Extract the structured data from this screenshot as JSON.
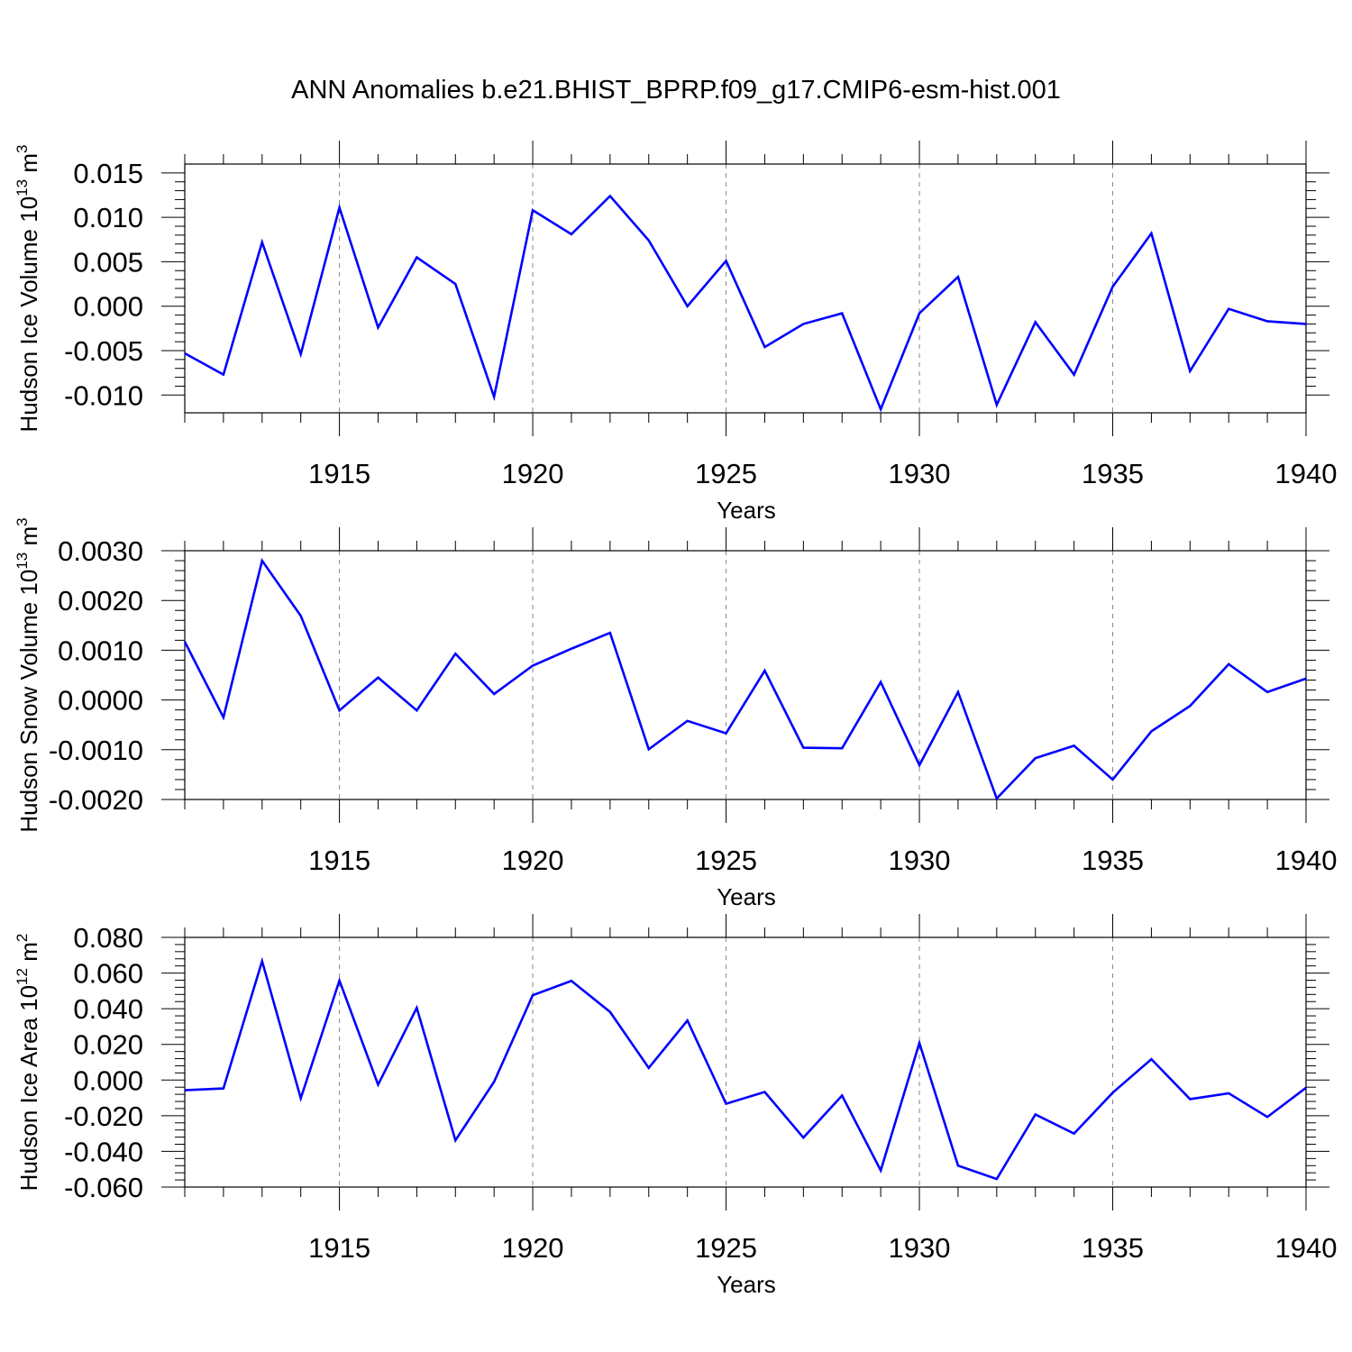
{
  "title": "ANN Anomalies b.e21.BHIST_BPRP.f09_g17.CMIP6-esm-hist.001",
  "colors": {
    "line": "#0000ff",
    "axis": "#000000",
    "grid": "#888888"
  },
  "chart_data": [
    {
      "type": "line",
      "ylabel": "Hudson Ice Volume 10",
      "ylabel_exp": "13",
      "ylabel_unit": "m",
      "ylabel_unit_exp": "3",
      "xlabel": "Years",
      "xlim": [
        1911,
        1940
      ],
      "ylim": [
        -0.012,
        0.016
      ],
      "yticks": [
        0.015,
        0.01,
        0.005,
        0.0,
        -0.005,
        -0.01
      ],
      "ytick_labels": [
        "0.015",
        "0.010",
        "0.005",
        "0.000",
        "-0.005",
        "-0.010"
      ],
      "xticks": [
        1915,
        1920,
        1925,
        1930,
        1935,
        1940
      ],
      "xtick_labels": [
        "1915",
        "1920",
        "1925",
        "1930",
        "1935",
        "1940"
      ],
      "grid": "vertical dashed at major x ticks",
      "x": [
        1911,
        1912,
        1913,
        1914,
        1915,
        1916,
        1917,
        1918,
        1919,
        1920,
        1921,
        1922,
        1923,
        1924,
        1925,
        1926,
        1927,
        1928,
        1929,
        1930,
        1931,
        1932,
        1933,
        1934,
        1935,
        1936,
        1937,
        1938,
        1939,
        1940
      ],
      "values": [
        -0.0053,
        -0.0077,
        0.0072,
        -0.0054,
        0.0111,
        -0.0024,
        0.0055,
        0.0025,
        -0.0102,
        0.0108,
        0.0081,
        0.0124,
        0.0074,
        0.0,
        0.0051,
        -0.0046,
        -0.002,
        -0.0008,
        -0.0116,
        -0.0008,
        0.0033,
        -0.0111,
        -0.0018,
        -0.0077,
        0.0022,
        0.0082,
        -0.0073,
        -0.0003,
        -0.0017,
        -0.002
      ]
    },
    {
      "type": "line",
      "ylabel": "Hudson Snow Volume 10",
      "ylabel_exp": "13",
      "ylabel_unit": "m",
      "ylabel_unit_exp": "3",
      "xlabel": "Years",
      "xlim": [
        1911,
        1940
      ],
      "ylim": [
        -0.002,
        0.003
      ],
      "yticks": [
        0.003,
        0.002,
        0.001,
        0.0,
        -0.001,
        -0.002
      ],
      "ytick_labels": [
        "0.0030",
        "0.0020",
        "0.0010",
        "0.0000",
        "-0.0010",
        "-0.0020"
      ],
      "xticks": [
        1915,
        1920,
        1925,
        1930,
        1935,
        1940
      ],
      "xtick_labels": [
        "1915",
        "1920",
        "1925",
        "1930",
        "1935",
        "1940"
      ],
      "grid": "vertical dashed at major x ticks",
      "x": [
        1911,
        1912,
        1913,
        1914,
        1915,
        1916,
        1917,
        1918,
        1919,
        1920,
        1921,
        1922,
        1923,
        1924,
        1925,
        1926,
        1927,
        1928,
        1929,
        1930,
        1931,
        1932,
        1933,
        1934,
        1935,
        1936,
        1937,
        1938,
        1939,
        1940
      ],
      "values": [
        0.00117,
        -0.00035,
        0.0028,
        0.00169,
        -0.00021,
        0.00045,
        -0.00021,
        0.00093,
        0.00012,
        0.00069,
        0.00103,
        0.00135,
        -0.00099,
        -0.00042,
        -0.00067,
        0.00059,
        -0.00096,
        -0.00097,
        0.00036,
        -0.00131,
        0.00016,
        -0.00198,
        -0.00117,
        -0.00092,
        -0.0016,
        -0.00063,
        -0.00012,
        0.00072,
        0.00016,
        0.00043
      ]
    },
    {
      "type": "line",
      "ylabel": "Hudson Ice Area 10",
      "ylabel_exp": "12",
      "ylabel_unit": "m",
      "ylabel_unit_exp": "2",
      "xlabel": "Years",
      "xlim": [
        1911,
        1940
      ],
      "ylim": [
        -0.06,
        0.08
      ],
      "yticks": [
        0.08,
        0.06,
        0.04,
        0.02,
        0.0,
        -0.02,
        -0.04,
        -0.06
      ],
      "ytick_labels": [
        "0.080",
        "0.060",
        "0.040",
        "0.020",
        "0.000",
        "-0.020",
        "-0.040",
        "-0.060"
      ],
      "xticks": [
        1915,
        1920,
        1925,
        1930,
        1935,
        1940
      ],
      "xtick_labels": [
        "1915",
        "1920",
        "1925",
        "1930",
        "1935",
        "1940"
      ],
      "grid": "vertical dashed at major x ticks",
      "x": [
        1911,
        1912,
        1913,
        1914,
        1915,
        1916,
        1917,
        1918,
        1919,
        1920,
        1921,
        1922,
        1923,
        1924,
        1925,
        1926,
        1927,
        1928,
        1929,
        1930,
        1931,
        1932,
        1933,
        1934,
        1935,
        1936,
        1937,
        1938,
        1939,
        1940
      ],
      "values": [
        -0.0057,
        -0.0047,
        0.0667,
        -0.0102,
        0.0558,
        -0.0026,
        0.0405,
        -0.0338,
        -0.001,
        0.0476,
        0.0556,
        0.0382,
        0.0068,
        0.0334,
        -0.0133,
        -0.0067,
        -0.0323,
        -0.0087,
        -0.0507,
        0.0208,
        -0.048,
        -0.0555,
        -0.0193,
        -0.03,
        -0.0071,
        0.0117,
        -0.0107,
        -0.0074,
        -0.0207,
        -0.0043
      ]
    }
  ]
}
